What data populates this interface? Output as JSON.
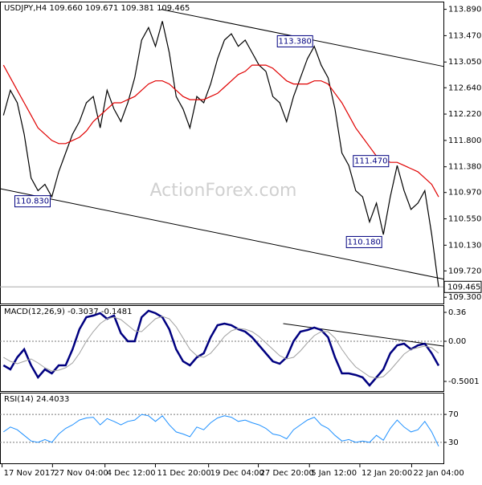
{
  "chart_data": [
    {
      "type": "line",
      "title": "USDJPY,H4  109.660 109.671 109.381 109.465",
      "watermark": "ActionForex.com",
      "xlim": [
        -0.5,
        63.7
      ],
      "ylim": [
        109.2,
        114.0
      ],
      "yticks": [
        {
          "value": 113.89,
          "label": "113.890"
        },
        {
          "value": 113.47,
          "label": "113.470"
        },
        {
          "value": 113.05,
          "label": "113.050"
        },
        {
          "value": 112.64,
          "label": "112.640"
        },
        {
          "value": 112.22,
          "label": "112.220"
        },
        {
          "value": 111.8,
          "label": "111.800"
        },
        {
          "value": 111.38,
          "label": "111.380"
        },
        {
          "value": 110.97,
          "label": "110.970"
        },
        {
          "value": 110.55,
          "label": "110.550"
        },
        {
          "value": 110.13,
          "label": "110.130"
        },
        {
          "value": 109.72,
          "label": "109.720"
        },
        {
          "value": 109.3,
          "label": "109.300"
        }
      ],
      "series": [
        {
          "color": "#000000",
          "width": 1.2,
          "values": [
            112.2,
            112.6,
            112.4,
            111.9,
            111.2,
            111.0,
            111.1,
            110.9,
            111.3,
            111.6,
            111.9,
            112.1,
            112.4,
            112.5,
            112.0,
            112.6,
            112.3,
            112.1,
            112.4,
            112.8,
            113.4,
            113.6,
            113.3,
            113.7,
            113.2,
            112.5,
            112.3,
            112.0,
            112.5,
            112.4,
            112.7,
            113.1,
            113.4,
            113.5,
            113.3,
            113.4,
            113.2,
            113.0,
            112.9,
            112.5,
            112.4,
            112.1,
            112.5,
            112.8,
            113.1,
            113.3,
            113.0,
            112.8,
            112.3,
            111.6,
            111.4,
            111.0,
            110.9,
            110.5,
            110.8,
            110.3,
            110.9,
            111.4,
            111.0,
            110.7,
            110.8,
            111.0,
            110.3,
            109.465
          ]
        },
        {
          "color": "#e00000",
          "width": 1.2,
          "values": [
            113.0,
            112.8,
            112.6,
            112.4,
            112.2,
            112.0,
            111.9,
            111.8,
            111.75,
            111.75,
            111.8,
            111.85,
            111.95,
            112.1,
            112.2,
            112.3,
            112.4,
            112.4,
            112.45,
            112.5,
            112.6,
            112.7,
            112.75,
            112.75,
            112.7,
            112.6,
            112.5,
            112.45,
            112.45,
            112.45,
            112.5,
            112.55,
            112.65,
            112.75,
            112.85,
            112.9,
            113.0,
            113.0,
            113.0,
            112.95,
            112.85,
            112.75,
            112.7,
            112.7,
            112.7,
            112.75,
            112.75,
            112.7,
            112.55,
            112.4,
            112.2,
            112.0,
            111.85,
            111.7,
            111.55,
            111.5,
            111.45,
            111.45,
            111.4,
            111.35,
            111.3,
            111.2,
            111.1,
            110.9
          ]
        }
      ],
      "trendlines": [
        {
          "x": [
            22.8,
            63.7
          ],
          "y": [
            113.89,
            112.98
          ]
        },
        {
          "x": [
            -0.47,
            63.7
          ],
          "y": [
            111.03,
            109.59
          ]
        }
      ],
      "annotations": [
        {
          "x": 7,
          "value": 110.83,
          "label": "110.830"
        },
        {
          "x": 45,
          "value": 113.38,
          "label": "113.380"
        },
        {
          "x": 56,
          "value": 111.47,
          "label": "111.470"
        },
        {
          "x": 55,
          "value": 110.18,
          "label": "110.180"
        }
      ],
      "last_price": {
        "value": 109.465,
        "label": "109.465"
      }
    },
    {
      "type": "line",
      "title": "MACD(12,26,9) -0.3037 -0.1481",
      "xlim": [
        -0.5,
        63.7
      ],
      "ylim": [
        -0.62,
        0.44
      ],
      "yticks": [
        0.36,
        {
          "value": 0,
          "label": "0.00"
        },
        -0.5001
      ],
      "zero_line": true,
      "series": [
        {
          "color": "#000080",
          "width": 2.5,
          "values": [
            -0.3,
            -0.35,
            -0.2,
            -0.1,
            -0.3,
            -0.45,
            -0.35,
            -0.4,
            -0.3,
            -0.3,
            -0.1,
            0.15,
            0.3,
            0.32,
            0.35,
            0.28,
            0.32,
            0.1,
            0.0,
            0.0,
            0.3,
            0.38,
            0.35,
            0.3,
            0.15,
            -0.1,
            -0.25,
            -0.3,
            -0.2,
            -0.15,
            0.05,
            0.2,
            0.22,
            0.2,
            0.15,
            0.12,
            0.05,
            -0.05,
            -0.15,
            -0.25,
            -0.28,
            -0.2,
            0.0,
            0.12,
            0.14,
            0.17,
            0.14,
            0.05,
            -0.2,
            -0.4,
            -0.4,
            -0.42,
            -0.45,
            -0.55,
            -0.45,
            -0.35,
            -0.15,
            -0.05,
            -0.03,
            -0.1,
            -0.05,
            -0.03,
            -0.15,
            -0.3037
          ]
        },
        {
          "color": "#a0a0a0",
          "width": 1,
          "values": [
            -0.2,
            -0.25,
            -0.28,
            -0.25,
            -0.22,
            -0.27,
            -0.33,
            -0.37,
            -0.36,
            -0.33,
            -0.27,
            -0.15,
            0.0,
            0.12,
            0.22,
            0.28,
            0.3,
            0.27,
            0.2,
            0.13,
            0.12,
            0.2,
            0.28,
            0.31,
            0.28,
            0.18,
            0.04,
            -0.1,
            -0.18,
            -0.2,
            -0.15,
            -0.05,
            0.06,
            0.13,
            0.16,
            0.15,
            0.12,
            0.06,
            -0.02,
            -0.1,
            -0.18,
            -0.22,
            -0.2,
            -0.12,
            -0.02,
            0.07,
            0.12,
            0.12,
            0.04,
            -0.1,
            -0.22,
            -0.32,
            -0.38,
            -0.44,
            -0.46,
            -0.44,
            -0.36,
            -0.26,
            -0.16,
            -0.1,
            -0.08,
            -0.06,
            -0.08,
            -0.1481
          ]
        }
      ],
      "trendlines": [
        {
          "x": [
            40.5,
            63.7
          ],
          "y": [
            0.22,
            -0.06
          ]
        }
      ]
    },
    {
      "type": "line",
      "title": "RSI(14) 24.4033",
      "xlim": [
        -0.5,
        63.7
      ],
      "ylim": [
        0,
        100
      ],
      "yticks": [
        70,
        30
      ],
      "grid": true,
      "series": [
        {
          "color": "#1e90ff",
          "width": 1,
          "values": [
            45,
            52,
            48,
            40,
            32,
            30,
            34,
            30,
            42,
            50,
            55,
            62,
            65,
            66,
            55,
            64,
            60,
            55,
            60,
            62,
            70,
            68,
            60,
            68,
            55,
            45,
            42,
            38,
            52,
            48,
            58,
            65,
            68,
            66,
            60,
            62,
            58,
            55,
            50,
            42,
            40,
            35,
            48,
            55,
            62,
            66,
            55,
            50,
            40,
            32,
            34,
            30,
            32,
            30,
            40,
            33,
            50,
            62,
            52,
            45,
            48,
            60,
            45,
            24.4033
          ]
        }
      ],
      "xticks": [
        {
          "value": -0.2,
          "label": "17 Nov 2017"
        },
        {
          "value": 7.1,
          "label": "27 Nov 04:00"
        },
        {
          "value": 14.7,
          "label": "4 Dec 12:00"
        },
        {
          "value": 22,
          "label": "11 Dec 20:00"
        },
        {
          "value": 29.7,
          "label": "19 Dec 04:00"
        },
        {
          "value": 36.9,
          "label": "27 Dec 20:00"
        },
        {
          "value": 44.3,
          "label": "5 Jan 12:00"
        },
        {
          "value": 51.6,
          "label": "12 Jan 20:00"
        },
        {
          "value": 59.1,
          "label": "22 Jan 04:00"
        }
      ]
    }
  ]
}
